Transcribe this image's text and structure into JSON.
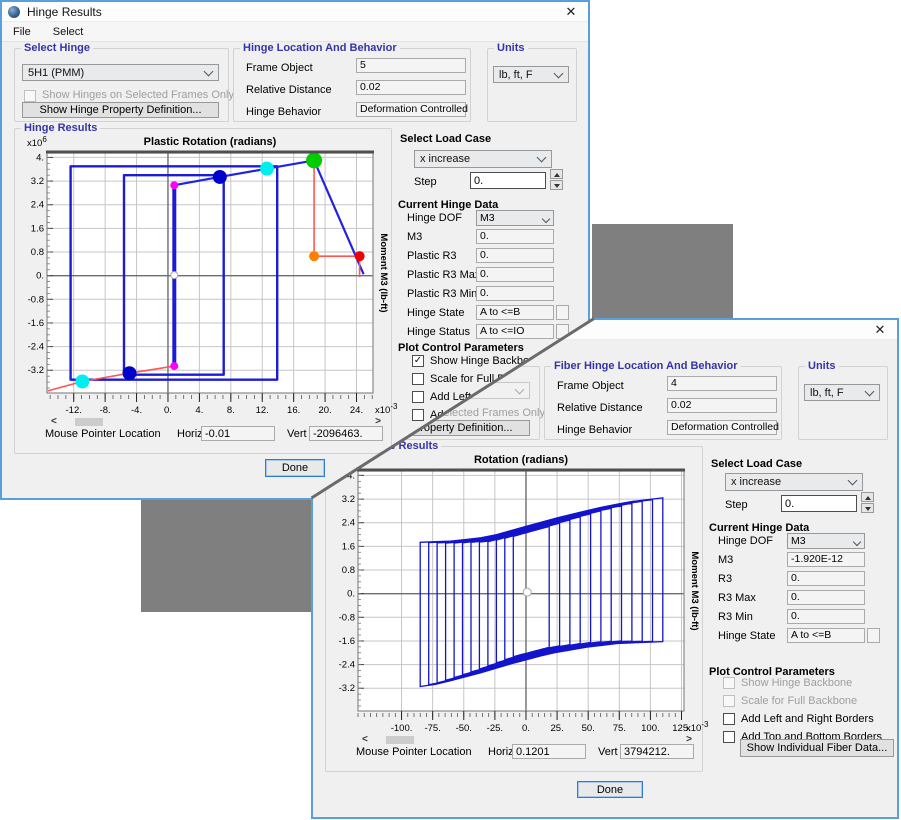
{
  "w1": {
    "title": "Hinge Results",
    "close": "✕",
    "menus": [
      "File",
      "Select"
    ],
    "select_hinge": {
      "caption": "Select Hinge",
      "value": "5H1 (PMM)",
      "checkbox": "Show Hinges on Selected Frames Only",
      "button": "Show Hinge Property Definition..."
    },
    "location": {
      "caption": "Hinge Location And Behavior",
      "rows": [
        {
          "label": "Frame Object",
          "value": "5"
        },
        {
          "label": "Relative Distance",
          "value": "0.02"
        },
        {
          "label": "Hinge Behavior",
          "value": "Deformation Controlled"
        }
      ]
    },
    "units": {
      "caption": "Units",
      "value": "lb, ft, F"
    },
    "results_caption": "Hinge Results",
    "mouse": {
      "label": "Mouse Pointer Location",
      "horiz_label": "Horiz",
      "horiz": "-0.01",
      "vert_label": "Vert",
      "vert": "-2096463."
    },
    "load_case": {
      "header": "Select Load Case",
      "value": "x increase",
      "step_label": "Step",
      "step": "0."
    },
    "hinge_data": {
      "header": "Current Hinge Data",
      "rows": [
        {
          "label": "Hinge DOF",
          "value": "M3",
          "type": "dropdown"
        },
        {
          "label": "M3",
          "value": "0."
        },
        {
          "label": "Plastic R3",
          "value": "0."
        },
        {
          "label": "Plastic R3 Max",
          "value": "0."
        },
        {
          "label": "Plastic R3 Min",
          "value": "0."
        },
        {
          "label": "Hinge State",
          "value": "A to <=B",
          "extra": true
        },
        {
          "label": "Hinge Status",
          "value": "A to <=IO",
          "extra": true
        }
      ]
    },
    "plot_controls": {
      "header": "Plot Control Parameters",
      "items": [
        {
          "label": "Show Hinge Backbone",
          "checked": true,
          "disabled": false
        },
        {
          "label": "Scale for Full Backbone",
          "checked": false,
          "disabled": false
        },
        {
          "label": "Add Left and Right Borders",
          "checked": false,
          "disabled": false
        },
        {
          "label": "Add Top and Bottom Borders",
          "checked": false,
          "disabled": false
        }
      ]
    },
    "done": "Done"
  },
  "w2": {
    "title": "",
    "close": "✕",
    "menus": [],
    "select_hinge": {
      "caption": "",
      "value": "",
      "checkbox": "Show Hinges on Selected Frames Only",
      "button": "Show Hinge Property Definition..."
    },
    "location": {
      "caption": "Fiber Hinge Location And Behavior",
      "rows": [
        {
          "label": "Frame Object",
          "value": "4"
        },
        {
          "label": "Relative Distance",
          "value": "0.02"
        },
        {
          "label": "Hinge Behavior",
          "value": "Deformation Controlled"
        }
      ]
    },
    "units": {
      "caption": "Units",
      "value": "lb, ft, F"
    },
    "results_caption": "Fiber Hinge Results",
    "mouse": {
      "label": "Mouse Pointer Location",
      "horiz_label": "Horiz",
      "horiz": "0.1201",
      "vert_label": "Vert",
      "vert": "3794212."
    },
    "load_case": {
      "header": "Select Load Case",
      "value": "x increase",
      "step_label": "Step",
      "step": "0."
    },
    "hinge_data": {
      "header": "Current Hinge Data",
      "rows": [
        {
          "label": "Hinge DOF",
          "value": "M3",
          "type": "dropdown"
        },
        {
          "label": "M3",
          "value": "-1.920E-12"
        },
        {
          "label": "R3",
          "value": "0."
        },
        {
          "label": "R3 Max",
          "value": "0."
        },
        {
          "label": "R3 Min",
          "value": "0."
        },
        {
          "label": "Hinge State",
          "value": "A to <=B",
          "extra": true
        }
      ]
    },
    "plot_controls": {
      "header": "Plot Control Parameters",
      "items": [
        {
          "label": "Show Hinge Backbone",
          "checked": false,
          "disabled": true
        },
        {
          "label": "Scale for Full Backbone",
          "checked": false,
          "disabled": true
        },
        {
          "label": "Add Left and Right Borders",
          "checked": false,
          "disabled": false
        },
        {
          "label": "Add Top and Bottom Borders",
          "checked": false,
          "disabled": false
        }
      ]
    },
    "fiber_button": "Show Individual Fiber Data...",
    "done": "Done"
  },
  "chart_data": [
    {
      "type": "line",
      "title": "Plastic Rotation  (radians)",
      "y_axis_title": "Moment M3  (lb-ft)",
      "y_scale": {
        "base": "x10",
        "exp": "6"
      },
      "x_scale": {
        "base": "x10",
        "exp": "-3"
      },
      "xlim": [
        -15.4,
        26.1
      ],
      "ylim": [
        -3.97,
        4.15
      ],
      "x_ticks": [
        -12,
        -8,
        -4,
        0,
        4,
        8,
        12,
        16,
        20,
        24
      ],
      "x_tick_labels": [
        "-12.",
        "-8.",
        "-4.",
        "0.",
        "4.",
        "8.",
        "12.",
        "16.",
        "20.",
        "24."
      ],
      "x_minor_step": 1,
      "y_ticks": [
        4,
        3.2,
        2.4,
        1.6,
        0.8,
        0,
        -0.8,
        -1.6,
        -2.4,
        -3.2
      ],
      "y_tick_labels": [
        "4.",
        "3.2",
        "2.4",
        "1.6",
        "0.8",
        "0.",
        "-0.8",
        "-1.6",
        "-2.4",
        "-3.2"
      ],
      "grid": true,
      "series": [
        {
          "kind": "polygon",
          "color": "#1c1cd6",
          "width": 2.4,
          "points": [
            [
              -12.4,
              3.7
            ],
            [
              13.9,
              3.7
            ],
            [
              13.9,
              -3.52
            ],
            [
              -12.4,
              -3.52
            ]
          ]
        },
        {
          "kind": "polygon",
          "color": "#1c1cd6",
          "width": 2.4,
          "points": [
            [
              -5.6,
              3.4
            ],
            [
              7.1,
              3.4
            ],
            [
              7.1,
              -3.35
            ],
            [
              -5.6,
              -3.35
            ]
          ]
        },
        {
          "kind": "polyline",
          "color": "#1c1cd6",
          "width": 4,
          "points": [
            [
              0.8,
              3.06
            ],
            [
              0.8,
              -3.06
            ]
          ]
        },
        {
          "kind": "polyline",
          "color": "#2222e0",
          "width": 2.2,
          "points": [
            [
              0.8,
              3.06
            ],
            [
              6.6,
              3.34
            ],
            [
              12.6,
              3.62
            ],
            [
              18.6,
              3.9
            ],
            [
              24.9,
              0.05
            ]
          ]
        },
        {
          "kind": "polyline",
          "color": "#ff5555",
          "width": 1.6,
          "points": [
            [
              18.6,
              3.9
            ],
            [
              18.6,
              0.66
            ],
            [
              24.4,
              0.66
            ],
            [
              24.4,
              -0.05
            ]
          ]
        },
        {
          "kind": "polyline",
          "color": "#ff5555",
          "width": 1.6,
          "points": [
            [
              -15.3,
              -3.9
            ],
            [
              -10.9,
              -3.58
            ],
            [
              -4.9,
              -3.3
            ],
            [
              0.8,
              -3.06
            ]
          ]
        }
      ],
      "points": [
        {
          "x": 0.8,
          "y": 3.06,
          "color": "#ff00ff",
          "r": 4
        },
        {
          "x": 6.6,
          "y": 3.34,
          "color": "#0000cc",
          "r": 7
        },
        {
          "x": 12.6,
          "y": 3.62,
          "color": "#00eeee",
          "r": 7
        },
        {
          "x": 18.6,
          "y": 3.9,
          "color": "#00cc00",
          "r": 8
        },
        {
          "x": 18.6,
          "y": 0.66,
          "color": "#ff8000",
          "r": 5
        },
        {
          "x": 24.4,
          "y": 0.66,
          "color": "#ee0000",
          "r": 5
        },
        {
          "x": 0.8,
          "y": -3.06,
          "color": "#ff00ff",
          "r": 4
        },
        {
          "x": -4.9,
          "y": -3.3,
          "color": "#0000cc",
          "r": 7
        },
        {
          "x": -10.9,
          "y": -3.58,
          "color": "#00eeee",
          "r": 7
        },
        {
          "x": 0.8,
          "y": 0.02,
          "color": "#ffffff",
          "r": 3.5,
          "stroke": "#aaaaaa"
        }
      ]
    },
    {
      "type": "line",
      "title": "Rotation  (radians)",
      "y_axis_title": "Moment M3  (lb-ft)",
      "y_scale": {
        "base": "x10",
        "exp": "6"
      },
      "x_scale": {
        "base": "x10",
        "exp": "-3"
      },
      "xlim": [
        -135,
        127
      ],
      "ylim": [
        -3.97,
        4.15
      ],
      "x_ticks": [
        -100,
        -75,
        -50,
        -25,
        0,
        25,
        50,
        75,
        100,
        125
      ],
      "x_tick_labels": [
        "-100.",
        "-75.",
        "-50.",
        "-25.",
        "0.",
        "25.",
        "50.",
        "75.",
        "100.",
        "125."
      ],
      "x_minor_step": 5,
      "y_ticks": [
        4,
        3.2,
        2.4,
        1.6,
        0.8,
        0,
        -0.8,
        -1.6,
        -2.4,
        -3.2
      ],
      "y_tick_labels": [
        "4.",
        "3.2",
        "2.4",
        "1.6",
        "0.8",
        "0.",
        "-0.8",
        "-1.6",
        "-2.4",
        "-3.2"
      ],
      "grid": true,
      "loops": {
        "count": 12,
        "xl0": -85,
        "dxl": 6.8,
        "xr0": 110,
        "dxr": -8.3,
        "offset": 0.02,
        "color": "#1414cc",
        "width": 1.3,
        "top": [
          [
            -95,
            1.72
          ],
          [
            -60,
            1.78
          ],
          [
            -30,
            1.92
          ],
          [
            0,
            2.28
          ],
          [
            30,
            2.62
          ],
          [
            60,
            2.92
          ],
          [
            85,
            3.12
          ],
          [
            112,
            3.25
          ]
        ],
        "bottom": [
          [
            -95,
            -3.2
          ],
          [
            -70,
            -3.05
          ],
          [
            -40,
            -2.72
          ],
          [
            -10,
            -2.35
          ],
          [
            20,
            -2.02
          ],
          [
            50,
            -1.8
          ],
          [
            75,
            -1.68
          ],
          [
            112,
            -1.62
          ]
        ]
      },
      "series": [],
      "points": [
        {
          "x": 1,
          "y": 0.05,
          "color": "#ffffff",
          "r": 4,
          "stroke": "#aaaaaa"
        }
      ]
    }
  ]
}
